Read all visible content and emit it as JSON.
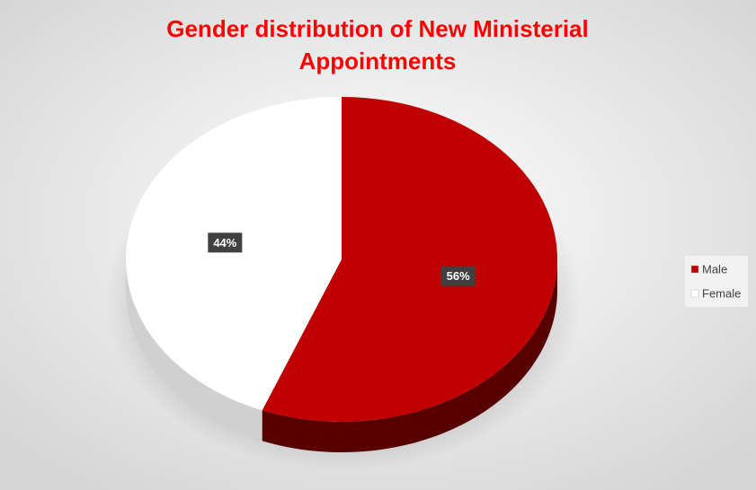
{
  "chart_data": {
    "type": "pie",
    "title": "Gender distribution of New Ministerial Appointments",
    "categories": [
      "Male",
      "Female"
    ],
    "values": [
      56,
      44
    ],
    "value_labels": [
      "56%",
      "44%"
    ],
    "colors": [
      "#c00000",
      "#ffffff"
    ],
    "legend": "right"
  }
}
